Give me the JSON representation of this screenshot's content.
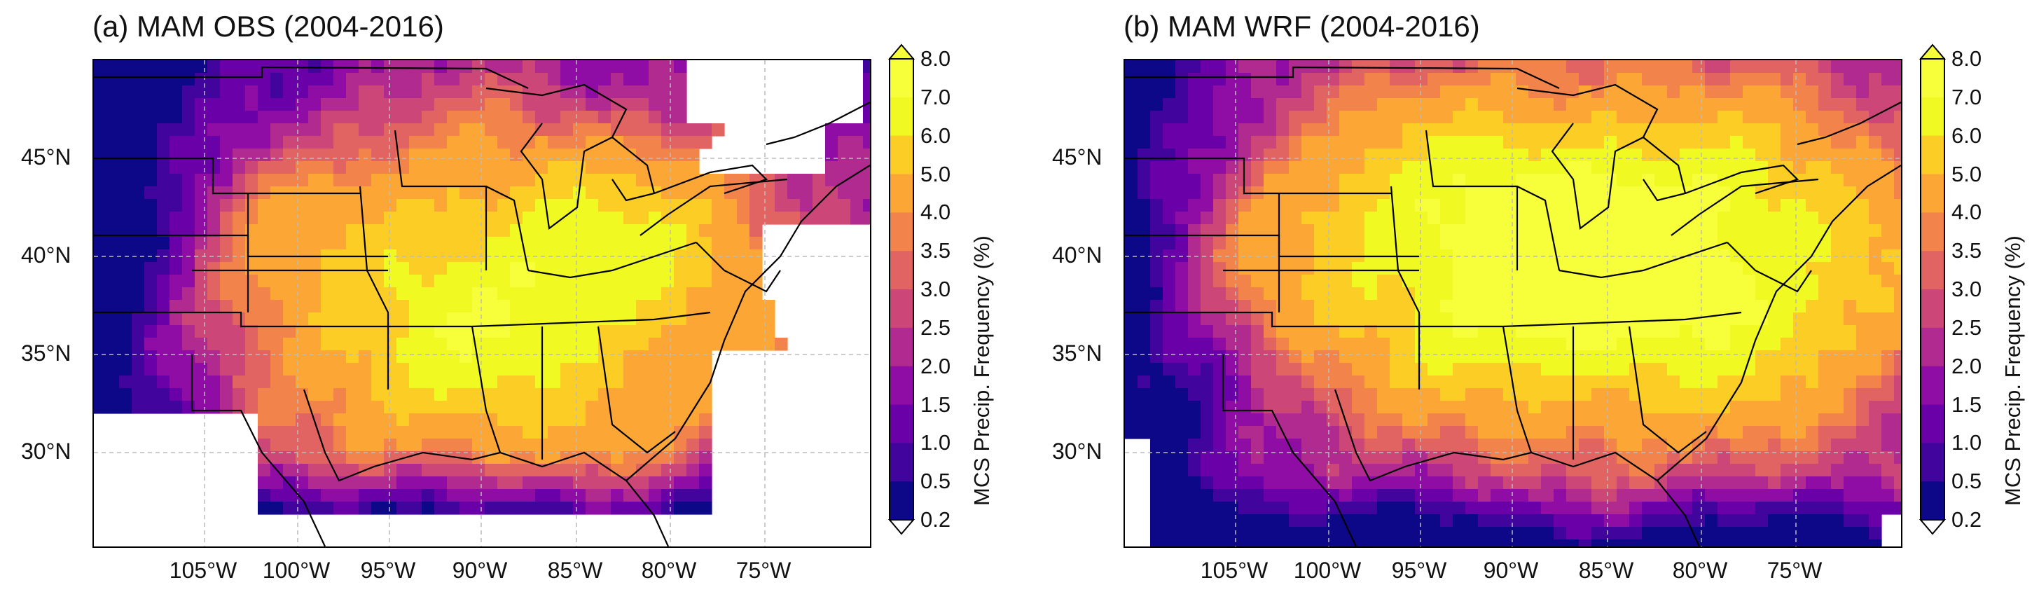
{
  "panels": [
    {
      "title": "(a) MAM OBS (2004-2016)",
      "dataset": "obs",
      "lat_labels": [
        "45°N",
        "40°N",
        "35°N",
        "30°N"
      ],
      "lon_labels": [
        "105°W",
        "100°W",
        "95°W",
        "90°W",
        "85°W",
        "80°W",
        "75°W"
      ]
    },
    {
      "title": "(b) MAM WRF (2004-2016)",
      "dataset": "wrf",
      "lat_labels": [
        "45°N",
        "40°N",
        "35°N",
        "30°N"
      ],
      "lon_labels": [
        "105°W",
        "100°W",
        "95°W",
        "90°W",
        "85°W",
        "80°W",
        "75°W"
      ]
    }
  ],
  "colorbar": {
    "label": "MCS Precip. Frequency (%)",
    "ticks": [
      "8.0",
      "7.0",
      "6.0",
      "5.0",
      "4.0",
      "3.5",
      "3.0",
      "2.5",
      "2.0",
      "1.5",
      "1.0",
      "0.5",
      "0.2"
    ],
    "colors": [
      "#0d0887",
      "#41049d",
      "#6a00a8",
      "#8f0da4",
      "#b12a90",
      "#cc4778",
      "#e16462",
      "#f2844b",
      "#fca636",
      "#fcce25",
      "#f0f921",
      "#f7ff3a"
    ],
    "extend": "both"
  },
  "chart_data": {
    "type": "heatmap",
    "variable": "MCS Precip. Frequency (%)",
    "season": "MAM",
    "period": "2004-2016",
    "levels": [
      0.2,
      0.5,
      1.0,
      1.5,
      2.0,
      2.5,
      3.0,
      3.5,
      4.0,
      5.0,
      6.0,
      7.0,
      8.0
    ],
    "lat_ticks": [
      45,
      40,
      35,
      30
    ],
    "lon_ticks": [
      -105,
      -100,
      -95,
      -90,
      -85,
      -80,
      -75
    ],
    "panels": [
      "(a) MAM OBS (2004-2016)",
      "(b) MAM WRF (2004-2016)"
    ]
  }
}
